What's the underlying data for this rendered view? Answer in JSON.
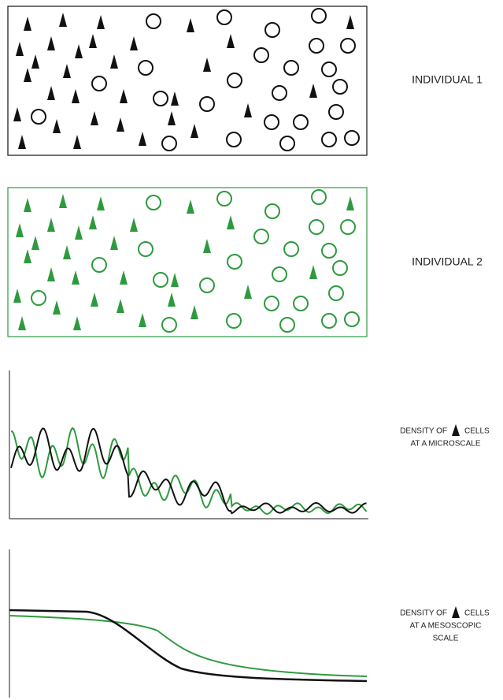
{
  "individual_1": {
    "label": "INDIVIDUAL 1"
  },
  "individual_2": {
    "label": "INDIVIDUAL 2"
  },
  "microscale": {
    "line1": "DENSITY OF",
    "cells": "CELLS",
    "line2": "AT A MICROSCALE"
  },
  "mesoscopic": {
    "line1": "DENSITY OF",
    "cells": "CELLS",
    "line2": "AT A MESOSCOPIC",
    "line3": "SCALE"
  }
}
